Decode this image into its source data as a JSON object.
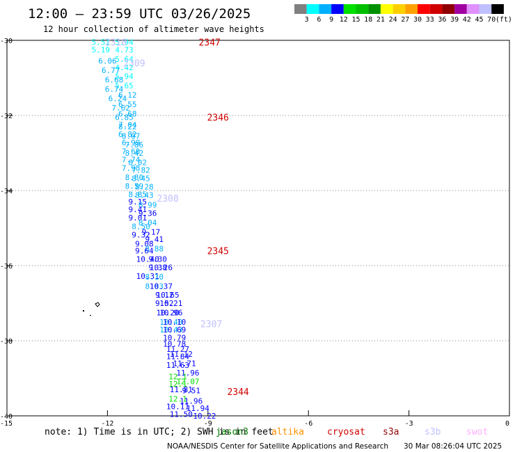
{
  "header": {
    "title": "12:00 – 23:59 UTC 03/26/2025",
    "subtitle": "12 hour collection of altimeter wave heights"
  },
  "legend": {
    "colors": [
      "#808080",
      "#00ffff",
      "#00b0ff",
      "#0000ff",
      "#00e000",
      "#00c000",
      "#009000",
      "#ffff00",
      "#ffd000",
      "#ffa000",
      "#ff0000",
      "#d00000",
      "#900000",
      "#a000a0",
      "#e090ff",
      "#c0c0ff",
      "#000000"
    ],
    "labels": [
      "3",
      "6",
      "9",
      "12",
      "15",
      "18",
      "21",
      "24",
      "27",
      "30",
      "33",
      "36",
      "39",
      "42",
      "45",
      "70",
      "(ft)"
    ]
  },
  "axes": {
    "x_ticks": [
      "-15",
      "-12",
      "-9",
      "-6",
      "-3",
      "0"
    ],
    "y_ticks": [
      "-30",
      "-32",
      "-34",
      "-36",
      "-38",
      "-40"
    ]
  },
  "chart_data": {
    "type": "scatter",
    "xlim": [
      -15,
      0
    ],
    "ylim": [
      -40,
      -30
    ],
    "units": "ft",
    "points": [
      {
        "lon": -12.2,
        "lat": -30.05,
        "v": "5.51",
        "c": "#00ffff"
      },
      {
        "lon": -11.5,
        "lat": -30.05,
        "v": "5.94",
        "c": "#00ffff"
      },
      {
        "lon": -12.2,
        "lat": -30.25,
        "v": "5.19",
        "c": "#00ffff"
      },
      {
        "lon": -11.5,
        "lat": -30.25,
        "v": "4.73",
        "c": "#00ffff"
      },
      {
        "lon": -11.5,
        "lat": -30.5,
        "v": "5.64",
        "c": "#00ffff"
      },
      {
        "lon": -12.0,
        "lat": -30.55,
        "v": "6.06",
        "c": "#00b0ff"
      },
      {
        "lon": -11.5,
        "lat": -30.72,
        "v": "4.42",
        "c": "#00ffff"
      },
      {
        "lon": -11.9,
        "lat": -30.8,
        "v": "6.77",
        "c": "#00b0ff"
      },
      {
        "lon": -11.5,
        "lat": -30.95,
        "v": "5.94",
        "c": "#00ffff"
      },
      {
        "lon": -11.8,
        "lat": -31.05,
        "v": "6.68",
        "c": "#00b0ff"
      },
      {
        "lon": -11.5,
        "lat": -31.2,
        "v": "5.65",
        "c": "#00ffff"
      },
      {
        "lon": -11.8,
        "lat": -31.3,
        "v": "6.74",
        "c": "#00b0ff"
      },
      {
        "lon": -11.4,
        "lat": -31.45,
        "v": "6.12",
        "c": "#00b0ff"
      },
      {
        "lon": -11.7,
        "lat": -31.55,
        "v": "6.24",
        "c": "#00b0ff"
      },
      {
        "lon": -11.4,
        "lat": -31.7,
        "v": "6.55",
        "c": "#00b0ff"
      },
      {
        "lon": -11.6,
        "lat": -31.8,
        "v": "7.62",
        "c": "#00b0ff"
      },
      {
        "lon": -11.4,
        "lat": -31.95,
        "v": "6.68",
        "c": "#00b0ff"
      },
      {
        "lon": -11.5,
        "lat": -32.05,
        "v": "6.85",
        "c": "#00b0ff"
      },
      {
        "lon": -11.4,
        "lat": -32.25,
        "v": "7.04",
        "c": "#00b0ff"
      },
      {
        "lon": -11.4,
        "lat": -32.3,
        "v": "8.22",
        "c": "#00b0ff"
      },
      {
        "lon": -11.4,
        "lat": -32.5,
        "v": "6.82",
        "c": "#00b0ff"
      },
      {
        "lon": -11.3,
        "lat": -32.55,
        "v": "8.07",
        "c": "#00b0ff"
      },
      {
        "lon": -11.3,
        "lat": -32.72,
        "v": "6.99",
        "c": "#00b0ff"
      },
      {
        "lon": -11.2,
        "lat": -32.78,
        "v": "7.86",
        "c": "#00b0ff"
      },
      {
        "lon": -11.3,
        "lat": -32.95,
        "v": "7.68",
        "c": "#00b0ff"
      },
      {
        "lon": -11.2,
        "lat": -33.0,
        "v": "8.42",
        "c": "#00b0ff"
      },
      {
        "lon": -11.3,
        "lat": -33.18,
        "v": "7.74",
        "c": "#00b0ff"
      },
      {
        "lon": -11.1,
        "lat": -33.25,
        "v": "8.02",
        "c": "#00b0ff"
      },
      {
        "lon": -11.3,
        "lat": -33.4,
        "v": "7.98",
        "c": "#00b0ff"
      },
      {
        "lon": -11.0,
        "lat": -33.45,
        "v": "7.82",
        "c": "#00b0ff"
      },
      {
        "lon": -11.2,
        "lat": -33.65,
        "v": "8.80",
        "c": "#00b0ff"
      },
      {
        "lon": -11.0,
        "lat": -33.68,
        "v": "8.45",
        "c": "#00b0ff"
      },
      {
        "lon": -11.2,
        "lat": -33.88,
        "v": "8.59",
        "c": "#00b0ff"
      },
      {
        "lon": -10.9,
        "lat": -33.9,
        "v": "8.28",
        "c": "#00b0ff"
      },
      {
        "lon": -11.1,
        "lat": -34.1,
        "v": "8.85",
        "c": "#00b0ff"
      },
      {
        "lon": -10.9,
        "lat": -34.12,
        "v": "8.43",
        "c": "#00b0ff"
      },
      {
        "lon": -11.1,
        "lat": -34.3,
        "v": "9.15",
        "c": "#0000ff"
      },
      {
        "lon": -10.8,
        "lat": -34.38,
        "v": "8.99",
        "c": "#00b0ff"
      },
      {
        "lon": -11.1,
        "lat": -34.5,
        "v": "9.41",
        "c": "#0000ff"
      },
      {
        "lon": -10.8,
        "lat": -34.6,
        "v": "9.36",
        "c": "#0000ff"
      },
      {
        "lon": -11.1,
        "lat": -34.72,
        "v": "9.01",
        "c": "#0000ff"
      },
      {
        "lon": -10.8,
        "lat": -34.85,
        "v": "8.04",
        "c": "#00b0ff"
      },
      {
        "lon": -11.0,
        "lat": -34.95,
        "v": "8.50",
        "c": "#00b0ff"
      },
      {
        "lon": -10.7,
        "lat": -35.1,
        "v": "9.17",
        "c": "#0000ff"
      },
      {
        "lon": -11.0,
        "lat": -35.18,
        "v": "9.32",
        "c": "#0000ff"
      },
      {
        "lon": -10.6,
        "lat": -35.3,
        "v": "9.41",
        "c": "#0000ff"
      },
      {
        "lon": -10.9,
        "lat": -35.42,
        "v": "9.08",
        "c": "#0000ff"
      },
      {
        "lon": -10.6,
        "lat": -35.55,
        "v": "8.88",
        "c": "#00b0ff"
      },
      {
        "lon": -10.9,
        "lat": -35.6,
        "v": "9.64",
        "c": "#0000ff"
      },
      {
        "lon": -10.8,
        "lat": -35.82,
        "v": "10.40",
        "c": "#0000ff"
      },
      {
        "lon": -10.5,
        "lat": -35.82,
        "v": "9.30",
        "c": "#0000ff"
      },
      {
        "lon": -10.5,
        "lat": -36.05,
        "v": "9.38",
        "c": "#0000ff"
      },
      {
        "lon": -10.4,
        "lat": -36.05,
        "v": "10.26",
        "c": "#0000ff"
      },
      {
        "lon": -10.8,
        "lat": -36.28,
        "v": "10.31",
        "c": "#0000ff"
      },
      {
        "lon": -10.6,
        "lat": -36.3,
        "v": "8.10",
        "c": "#00b0ff"
      },
      {
        "lon": -10.6,
        "lat": -36.55,
        "v": "8.83",
        "c": "#00b0ff"
      },
      {
        "lon": -10.4,
        "lat": -36.55,
        "v": "10.37",
        "c": "#0000ff"
      },
      {
        "lon": -10.3,
        "lat": -36.78,
        "v": "9.12",
        "c": "#0000ff"
      },
      {
        "lon": -10.2,
        "lat": -36.78,
        "v": "10.65",
        "c": "#0000ff"
      },
      {
        "lon": -10.3,
        "lat": -37.0,
        "v": "9.52",
        "c": "#0000ff"
      },
      {
        "lon": -10.1,
        "lat": -37.0,
        "v": "10.21",
        "c": "#0000ff"
      },
      {
        "lon": -10.2,
        "lat": -37.25,
        "v": "10.20",
        "c": "#0000ff"
      },
      {
        "lon": -10.1,
        "lat": -37.25,
        "v": "10.96",
        "c": "#0000ff"
      },
      {
        "lon": -10.1,
        "lat": -37.5,
        "v": "10.40",
        "c": "#00b0ff"
      },
      {
        "lon": -10.0,
        "lat": -37.5,
        "v": "10.10",
        "c": "#0000ff"
      },
      {
        "lon": -10.1,
        "lat": -37.7,
        "v": "10.43",
        "c": "#00b0ff"
      },
      {
        "lon": -10.0,
        "lat": -37.7,
        "v": "10.69",
        "c": "#0000ff"
      },
      {
        "lon": -10.0,
        "lat": -37.92,
        "v": "10.79",
        "c": "#0000ff"
      },
      {
        "lon": -10.0,
        "lat": -38.08,
        "v": "10.78",
        "c": "#0000ff"
      },
      {
        "lon": -9.9,
        "lat": -38.22,
        "v": "11.27",
        "c": "#0000ff"
      },
      {
        "lon": -9.8,
        "lat": -38.35,
        "v": "11.12",
        "c": "#0000ff"
      },
      {
        "lon": -9.9,
        "lat": -38.42,
        "v": "11.84",
        "c": "#0000ff"
      },
      {
        "lon": -9.7,
        "lat": -38.6,
        "v": "11.71",
        "c": "#0000ff"
      },
      {
        "lon": -9.9,
        "lat": -38.65,
        "v": "11.63",
        "c": "#0000ff"
      },
      {
        "lon": -9.6,
        "lat": -38.85,
        "v": "11.96",
        "c": "#0000ff"
      },
      {
        "lon": -9.9,
        "lat": -38.95,
        "v": "12.1",
        "c": "#00e000"
      },
      {
        "lon": -9.6,
        "lat": -39.08,
        "v": "12.07",
        "c": "#00e000"
      },
      {
        "lon": -9.9,
        "lat": -39.15,
        "v": "12.1",
        "c": "#00e000"
      },
      {
        "lon": -9.8,
        "lat": -39.3,
        "v": "11.81",
        "c": "#0000ff"
      },
      {
        "lon": -9.5,
        "lat": -39.32,
        "v": "9.51",
        "c": "#0000ff"
      },
      {
        "lon": -9.9,
        "lat": -39.55,
        "v": "12.1",
        "c": "#00e000"
      },
      {
        "lon": -9.5,
        "lat": -39.6,
        "v": "11.96",
        "c": "#0000ff"
      },
      {
        "lon": -9.9,
        "lat": -39.75,
        "v": "10.11",
        "c": "#0000ff"
      },
      {
        "lon": -9.3,
        "lat": -39.8,
        "v": "11.94",
        "c": "#0000ff"
      },
      {
        "lon": -9.8,
        "lat": -39.95,
        "v": "11.50",
        "c": "#0000ff"
      },
      {
        "lon": -9.1,
        "lat": -40.0,
        "v": "10.22",
        "c": "#0000ff"
      }
    ],
    "passes": [
      {
        "label": "2347",
        "lon": -8.95,
        "lat": -30.05,
        "c": "#d00000"
      },
      {
        "label": "2310",
        "lon": -11.75,
        "lat": -30.05,
        "c": "#c0c0ff"
      },
      {
        "label": "2309",
        "lon": -11.2,
        "lat": -30.6,
        "c": "#c0c0ff"
      },
      {
        "label": "2346",
        "lon": -8.7,
        "lat": -32.05,
        "c": "#d00000"
      },
      {
        "label": "2308",
        "lon": -10.2,
        "lat": -34.2,
        "c": "#c0c0ff"
      },
      {
        "label": "2345",
        "lon": -8.7,
        "lat": -35.6,
        "c": "#d00000"
      },
      {
        "label": "2307",
        "lon": -8.9,
        "lat": -37.55,
        "c": "#c0c0ff"
      },
      {
        "label": "2344",
        "lon": -8.1,
        "lat": -39.35,
        "c": "#d00000"
      }
    ]
  },
  "footer": {
    "note": "note: 1) Time is in UTC; 2) SWH is in feet",
    "satellites": [
      {
        "name": "jason3",
        "color": "#008000"
      },
      {
        "name": "altika",
        "color": "#ff9000"
      },
      {
        "name": "cryosat",
        "color": "#d00000"
      },
      {
        "name": "s3a",
        "color": "#900000"
      },
      {
        "name": "s3b",
        "color": "#c0c0ff"
      },
      {
        "name": "swot",
        "color": "#ffb0ff"
      }
    ],
    "credit": "NOAA/NESDIS Center for Satellite Applications and Research",
    "generated": "30 Mar 08:26:04 UTC 2025"
  }
}
